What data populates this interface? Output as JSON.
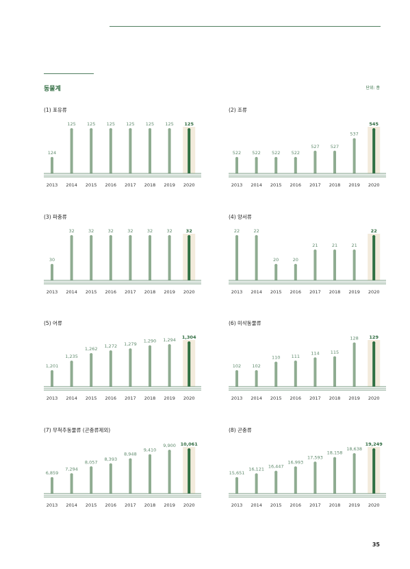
{
  "section_title": "동물계",
  "unit_label": "단위: 종",
  "page_number": "35",
  "colors": {
    "bar": "#8fac91",
    "bar_highlight": "#2f7042",
    "highlight_bg": "#f3ebdc",
    "axis": "#4f7d5e",
    "label": "#5f8a6c"
  },
  "chart_data": [
    {
      "type": "bar",
      "title": "(1) 포유류",
      "categories": [
        "2013",
        "2014",
        "2015",
        "2016",
        "2017",
        "2018",
        "2019",
        "2020"
      ],
      "values": [
        124,
        125,
        125,
        125,
        125,
        125,
        125,
        125
      ],
      "labels": [
        "124",
        "125",
        "125",
        "125",
        "125",
        "125",
        "125",
        "125"
      ]
    },
    {
      "type": "bar",
      "title": "(2) 조류",
      "categories": [
        "2013",
        "2014",
        "2015",
        "2016",
        "2017",
        "2018",
        "2019",
        "2020"
      ],
      "values": [
        522,
        522,
        522,
        522,
        527,
        527,
        537,
        545
      ],
      "labels": [
        "522",
        "522",
        "522",
        "522",
        "527",
        "527",
        "537",
        "545"
      ]
    },
    {
      "type": "bar",
      "title": "(3) 파충류",
      "categories": [
        "2013",
        "2014",
        "2015",
        "2016",
        "2017",
        "2018",
        "2019",
        "2020"
      ],
      "values": [
        30,
        32,
        32,
        32,
        32,
        32,
        32,
        32
      ],
      "labels": [
        "30",
        "32",
        "32",
        "32",
        "32",
        "32",
        "32",
        "32"
      ]
    },
    {
      "type": "bar",
      "title": "(4) 양서류",
      "categories": [
        "2013",
        "2014",
        "2015",
        "2016",
        "2017",
        "2018",
        "2019",
        "2020"
      ],
      "values": [
        22,
        22,
        20,
        20,
        21,
        21,
        21,
        22
      ],
      "labels": [
        "22",
        "22",
        "20",
        "20",
        "21",
        "21",
        "21",
        "22"
      ]
    },
    {
      "type": "bar",
      "title": "(5) 어류",
      "categories": [
        "2013",
        "2014",
        "2015",
        "2016",
        "2017",
        "2018",
        "2019",
        "2020"
      ],
      "values": [
        1201,
        1235,
        1262,
        1272,
        1279,
        1290,
        1294,
        1304
      ],
      "labels": [
        "1,201",
        "1,235",
        "1,262",
        "1,272",
        "1,279",
        "1,290",
        "1,294",
        "1,304"
      ]
    },
    {
      "type": "bar",
      "title": "(6) 미삭동물류",
      "categories": [
        "2013",
        "2014",
        "2015",
        "2016",
        "2017",
        "2018",
        "2019",
        "2020"
      ],
      "values": [
        102,
        102,
        110,
        111,
        114,
        115,
        128,
        129
      ],
      "labels": [
        "102",
        "102",
        "110",
        "111",
        "114",
        "115",
        "128",
        "129"
      ]
    },
    {
      "type": "bar",
      "title": "(7) 무척추동물류 (곤충류제외)",
      "categories": [
        "2013",
        "2014",
        "2015",
        "2016",
        "2017",
        "2018",
        "2019",
        "2020"
      ],
      "values": [
        6859,
        7294,
        8057,
        8393,
        8948,
        9410,
        9900,
        10061
      ],
      "labels": [
        "6,859",
        "7,294",
        "8,057",
        "8,393",
        "8,948",
        "9,410",
        "9,900",
        "10,061"
      ]
    },
    {
      "type": "bar",
      "title": "(8) 곤충류",
      "categories": [
        "2013",
        "2014",
        "2015",
        "2016",
        "2017",
        "2018",
        "2019",
        "2020"
      ],
      "values": [
        15651,
        16121,
        16447,
        16993,
        17593,
        18158,
        18638,
        19249
      ],
      "labels": [
        "15,651",
        "16,121",
        "16,447",
        "16,993",
        "17,593",
        "18,158",
        "18,638",
        "19,249"
      ]
    }
  ]
}
